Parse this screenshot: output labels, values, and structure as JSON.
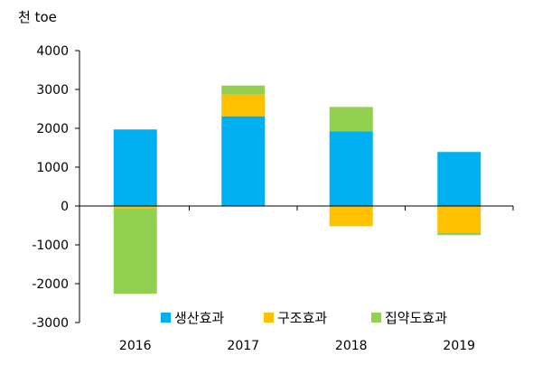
{
  "chart_data": {
    "type": "bar",
    "stacked": true,
    "unit_label": "천 toe",
    "categories": [
      "2016",
      "2017",
      "2018",
      "2019"
    ],
    "ylim": [
      -3000,
      4000
    ],
    "yticks": [
      4000,
      3000,
      2000,
      1000,
      0,
      -1000,
      -2000,
      -3000
    ],
    "ytick_labels": [
      "4000",
      "3000",
      "2000",
      "1000",
      "0",
      "-1000",
      "-2000",
      "-3000"
    ],
    "series": [
      {
        "name": "생산효과",
        "color": "#00B0F0",
        "values": [
          1970,
          2310,
          1920,
          1390
        ]
      },
      {
        "name": "구조효과",
        "color": "#FFC000",
        "values": [
          -60,
          560,
          -520,
          -680
        ]
      },
      {
        "name": "집약도효과",
        "color": "#92D050",
        "values": [
          -2200,
          230,
          630,
          -70
        ]
      }
    ],
    "legend_position": "bottom",
    "grid": false
  }
}
